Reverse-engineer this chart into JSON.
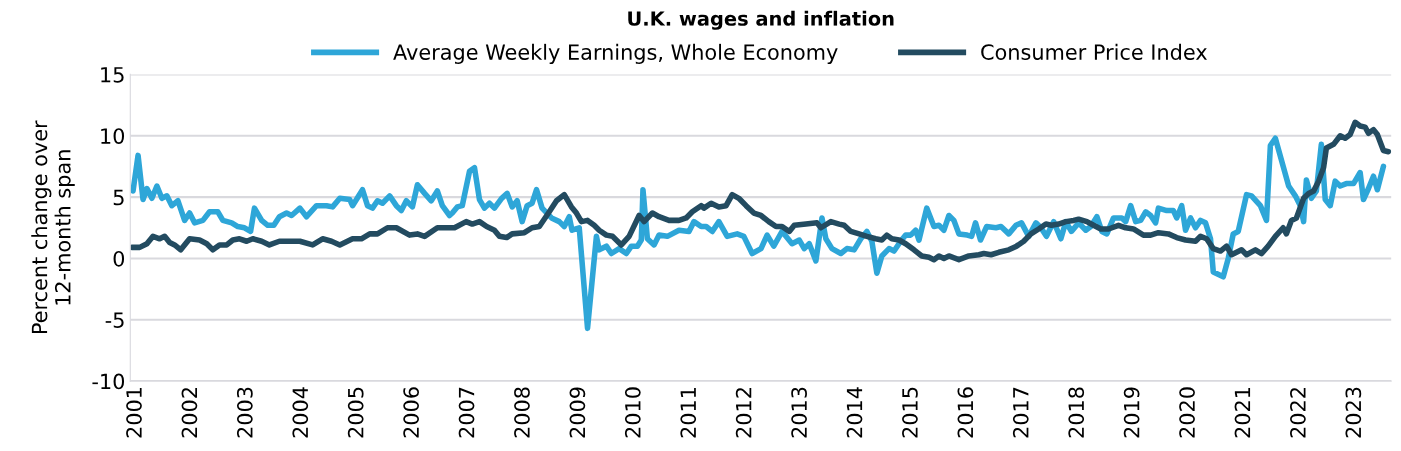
{
  "chart_data": {
    "type": "line",
    "title": "U.K. wages and inflation",
    "ylabel": "Percent change over\n12-month span",
    "xlim": [
      2000.9,
      2023.65
    ],
    "xticks": [
      2001,
      2002,
      2003,
      2004,
      2005,
      2006,
      2007,
      2008,
      2009,
      2010,
      2011,
      2012,
      2013,
      2014,
      2015,
      2016,
      2017,
      2018,
      2019,
      2020,
      2021,
      2022,
      2023
    ],
    "ylim": [
      -10,
      15
    ],
    "yticks": [
      -10,
      -5,
      0,
      5,
      10,
      15
    ],
    "grid": "y",
    "legend": "top",
    "marker": "none",
    "line_style": "solid",
    "series": [
      {
        "name": "Average Weekly Earnings, Whole Economy",
        "color": "#2ea6d8",
        "x": [
          2000.95,
          2001.04,
          2001.13,
          2001.2,
          2001.29,
          2001.38,
          2001.47,
          2001.56,
          2001.65,
          2001.76,
          2001.88,
          2001.97,
          2002.06,
          2002.21,
          2002.33,
          2002.48,
          2002.57,
          2002.73,
          2002.84,
          2002.96,
          2003.07,
          2003.14,
          2003.27,
          2003.38,
          2003.49,
          2003.59,
          2003.72,
          2003.81,
          2003.96,
          2004.08,
          2004.26,
          2004.44,
          2004.55,
          2004.68,
          2004.86,
          2004.91,
          2005.09,
          2005.18,
          2005.27,
          2005.36,
          2005.45,
          2005.58,
          2005.7,
          2005.79,
          2005.88,
          2005.99,
          2006.08,
          2006.21,
          2006.33,
          2006.44,
          2006.53,
          2006.66,
          2006.71,
          2006.8,
          2006.89,
          2007.02,
          2007.11,
          2007.2,
          2007.29,
          2007.38,
          2007.47,
          2007.6,
          2007.7,
          2007.79,
          2007.88,
          2007.97,
          2008.06,
          2008.15,
          2008.23,
          2008.33,
          2008.5,
          2008.64,
          2008.73,
          2008.82,
          2008.87,
          2009.0,
          2009.15,
          2009.31,
          2009.36,
          2009.49,
          2009.58,
          2009.72,
          2009.85,
          2009.94,
          2010.05,
          2010.12,
          2010.15,
          2010.23,
          2010.35,
          2010.44,
          2010.59,
          2010.8,
          2010.98,
          2011.07,
          2011.2,
          2011.29,
          2011.4,
          2011.52,
          2011.67,
          2011.85,
          2011.97,
          2012.12,
          2012.28,
          2012.39,
          2012.51,
          2012.66,
          2012.84,
          2012.97,
          2013.06,
          2013.15,
          2013.27,
          2013.38,
          2013.45,
          2013.56,
          2013.72,
          2013.83,
          2013.96,
          2014.08,
          2014.19,
          2014.28,
          2014.37,
          2014.46,
          2014.59,
          2014.68,
          2014.8,
          2014.89,
          2014.98,
          2015.07,
          2015.13,
          2015.27,
          2015.4,
          2015.49,
          2015.58,
          2015.67,
          2015.76,
          2015.85,
          2016.0,
          2016.08,
          2016.15,
          2016.24,
          2016.35,
          2016.52,
          2016.61,
          2016.75,
          2016.88,
          2016.98,
          2017.11,
          2017.24,
          2017.33,
          2017.43,
          2017.56,
          2017.69,
          2017.78,
          2017.88,
          2018.01,
          2018.14,
          2018.23,
          2018.34,
          2018.43,
          2018.52,
          2018.64,
          2018.79,
          2018.86,
          2018.95,
          2019.04,
          2019.13,
          2019.22,
          2019.31,
          2019.4,
          2019.45,
          2019.6,
          2019.72,
          2019.78,
          2019.87,
          2019.94,
          2020.03,
          2020.12,
          2020.21,
          2020.3,
          2020.39,
          2020.44,
          2020.62,
          2020.71,
          2020.8,
          2020.89,
          2021.04,
          2021.13,
          2021.29,
          2021.4,
          2021.47,
          2021.56,
          2021.8,
          2021.92,
          2022.01,
          2022.07,
          2022.12,
          2022.21,
          2022.3,
          2022.39,
          2022.46,
          2022.55,
          2022.64,
          2022.73,
          2022.84,
          2022.97,
          2023.09,
          2023.15,
          2023.24,
          2023.33,
          2023.4,
          2023.51
        ],
        "values": [
          5.5,
          8.4,
          4.8,
          5.7,
          4.9,
          5.9,
          4.9,
          5.1,
          4.3,
          4.7,
          3.1,
          3.7,
          2.9,
          3.1,
          3.8,
          3.8,
          3.1,
          2.9,
          2.6,
          2.5,
          2.2,
          4.1,
          3.1,
          2.7,
          2.7,
          3.4,
          3.7,
          3.5,
          4.1,
          3.4,
          4.3,
          4.3,
          4.2,
          4.9,
          4.8,
          4.3,
          5.6,
          4.3,
          4.1,
          4.7,
          4.5,
          5.1,
          4.3,
          3.9,
          4.7,
          4.2,
          6.0,
          5.3,
          4.7,
          5.5,
          4.3,
          3.5,
          3.7,
          4.2,
          4.3,
          7.1,
          7.4,
          4.8,
          4.1,
          4.5,
          4.1,
          4.9,
          5.3,
          4.2,
          4.7,
          3.0,
          4.3,
          4.5,
          5.6,
          4.1,
          3.3,
          3.0,
          2.6,
          3.4,
          2.3,
          2.5,
          -5.7,
          1.8,
          0.7,
          1.0,
          0.4,
          0.8,
          0.4,
          1.0,
          1.0,
          1.5,
          5.6,
          1.6,
          1.1,
          1.9,
          1.8,
          2.3,
          2.2,
          3.0,
          2.6,
          2.6,
          2.2,
          3.0,
          1.8,
          2.0,
          1.8,
          0.4,
          0.8,
          1.9,
          1.0,
          2.2,
          1.2,
          1.5,
          0.8,
          1.2,
          -0.2,
          3.3,
          1.6,
          0.8,
          0.4,
          0.8,
          0.7,
          1.6,
          2.2,
          1.4,
          -1.2,
          0.2,
          0.8,
          0.6,
          1.4,
          1.9,
          1.9,
          2.3,
          1.5,
          4.1,
          2.6,
          2.7,
          2.3,
          3.5,
          3.1,
          2.0,
          1.9,
          1.8,
          2.9,
          1.5,
          2.6,
          2.5,
          2.6,
          2.0,
          2.7,
          2.9,
          1.8,
          2.9,
          2.5,
          1.8,
          3.0,
          1.6,
          3.0,
          2.2,
          2.9,
          2.3,
          2.6,
          3.4,
          2.2,
          2.0,
          3.3,
          3.3,
          3.0,
          4.3,
          3.0,
          3.1,
          3.8,
          3.5,
          2.9,
          4.1,
          3.9,
          3.9,
          3.3,
          4.3,
          2.3,
          3.3,
          2.5,
          3.1,
          2.9,
          1.6,
          -1.1,
          -1.5,
          0.0,
          2.0,
          2.2,
          5.2,
          5.1,
          4.3,
          3.1,
          9.2,
          9.8,
          5.9,
          5.1,
          4.3,
          3.0,
          6.4,
          4.9,
          5.5,
          9.3,
          4.8,
          4.3,
          6.3,
          5.9,
          6.1,
          6.1,
          7.0,
          4.8,
          5.7,
          6.7,
          5.6,
          7.5
        ]
      },
      {
        "name": "Consumer Price Index",
        "color": "#234b60",
        "x": [
          2000.93,
          2001.07,
          2001.2,
          2001.31,
          2001.43,
          2001.52,
          2001.61,
          2001.7,
          2001.81,
          2001.97,
          2002.15,
          2002.28,
          2002.39,
          2002.51,
          2002.64,
          2002.75,
          2002.87,
          2003.0,
          2003.11,
          2003.27,
          2003.41,
          2003.59,
          2003.78,
          2003.96,
          2004.19,
          2004.37,
          2004.53,
          2004.68,
          2004.91,
          2005.07,
          2005.22,
          2005.36,
          2005.54,
          2005.7,
          2005.94,
          2006.08,
          2006.21,
          2006.44,
          2006.57,
          2006.75,
          2006.96,
          2007.07,
          2007.2,
          2007.33,
          2007.47,
          2007.56,
          2007.69,
          2007.79,
          2008.01,
          2008.15,
          2008.28,
          2008.46,
          2008.59,
          2008.73,
          2008.86,
          2008.95,
          2009.04,
          2009.15,
          2009.27,
          2009.36,
          2009.49,
          2009.6,
          2009.76,
          2009.9,
          2010.08,
          2010.17,
          2010.32,
          2010.44,
          2010.62,
          2010.8,
          2010.93,
          2011.04,
          2011.2,
          2011.25,
          2011.38,
          2011.52,
          2011.65,
          2011.76,
          2011.88,
          2012.01,
          2012.15,
          2012.28,
          2012.42,
          2012.55,
          2012.66,
          2012.79,
          2012.88,
          2013.09,
          2013.29,
          2013.36,
          2013.54,
          2013.69,
          2013.78,
          2013.9,
          2014.05,
          2014.19,
          2014.35,
          2014.46,
          2014.55,
          2014.64,
          2014.77,
          2014.89,
          2015.04,
          2015.18,
          2015.31,
          2015.4,
          2015.49,
          2015.58,
          2015.67,
          2015.85,
          2016.03,
          2016.21,
          2016.3,
          2016.43,
          2016.57,
          2016.75,
          2016.89,
          2017.02,
          2017.15,
          2017.29,
          2017.42,
          2017.52,
          2017.65,
          2017.78,
          2017.92,
          2018.01,
          2018.16,
          2018.28,
          2018.41,
          2018.55,
          2018.73,
          2018.86,
          2019.0,
          2019.18,
          2019.31,
          2019.45,
          2019.63,
          2019.78,
          2019.94,
          2020.12,
          2020.21,
          2020.32,
          2020.44,
          2020.57,
          2020.68,
          2020.77,
          2020.95,
          2021.04,
          2021.2,
          2021.31,
          2021.43,
          2021.56,
          2021.7,
          2021.76,
          2021.85,
          2021.94,
          2022.07,
          2022.16,
          2022.25,
          2022.34,
          2022.43,
          2022.48,
          2022.61,
          2022.73,
          2022.82,
          2022.91,
          2023.0,
          2023.09,
          2023.18,
          2023.24,
          2023.33,
          2023.4,
          2023.51,
          2023.6
        ],
        "values": [
          0.9,
          0.9,
          1.2,
          1.8,
          1.6,
          1.8,
          1.3,
          1.1,
          0.7,
          1.6,
          1.5,
          1.2,
          0.7,
          1.1,
          1.1,
          1.5,
          1.6,
          1.4,
          1.6,
          1.4,
          1.1,
          1.4,
          1.4,
          1.4,
          1.1,
          1.6,
          1.4,
          1.1,
          1.6,
          1.6,
          2.0,
          2.0,
          2.5,
          2.5,
          1.9,
          2.0,
          1.8,
          2.5,
          2.5,
          2.5,
          3.0,
          2.8,
          3.0,
          2.6,
          2.3,
          1.8,
          1.7,
          2.0,
          2.1,
          2.5,
          2.6,
          3.8,
          4.7,
          5.2,
          4.2,
          3.7,
          3.0,
          3.1,
          2.7,
          2.3,
          1.9,
          1.8,
          1.1,
          1.8,
          3.5,
          3.0,
          3.7,
          3.4,
          3.1,
          3.1,
          3.3,
          3.8,
          4.3,
          4.1,
          4.5,
          4.2,
          4.3,
          5.2,
          4.9,
          4.3,
          3.7,
          3.5,
          3.0,
          2.6,
          2.6,
          2.2,
          2.7,
          2.8,
          2.9,
          2.5,
          3.0,
          2.8,
          2.7,
          2.2,
          2.0,
          1.8,
          1.6,
          1.5,
          1.9,
          1.6,
          1.5,
          1.2,
          0.7,
          0.2,
          0.1,
          -0.1,
          0.2,
          0.0,
          0.2,
          -0.1,
          0.2,
          0.3,
          0.4,
          0.3,
          0.5,
          0.7,
          1.0,
          1.4,
          2.0,
          2.4,
          2.8,
          2.7,
          2.8,
          3.0,
          3.1,
          3.2,
          3.0,
          2.7,
          2.4,
          2.4,
          2.7,
          2.5,
          2.4,
          1.9,
          1.9,
          2.1,
          2.0,
          1.7,
          1.5,
          1.4,
          1.8,
          1.6,
          0.8,
          0.6,
          1.0,
          0.3,
          0.7,
          0.3,
          0.7,
          0.4,
          1.0,
          1.8,
          2.5,
          2.0,
          3.1,
          3.3,
          4.9,
          5.3,
          5.5,
          6.3,
          7.4,
          9.0,
          9.3,
          10.0,
          9.8,
          10.1,
          11.1,
          10.8,
          10.7,
          10.2,
          10.5,
          10.1,
          8.8,
          8.7
        ]
      }
    ]
  }
}
